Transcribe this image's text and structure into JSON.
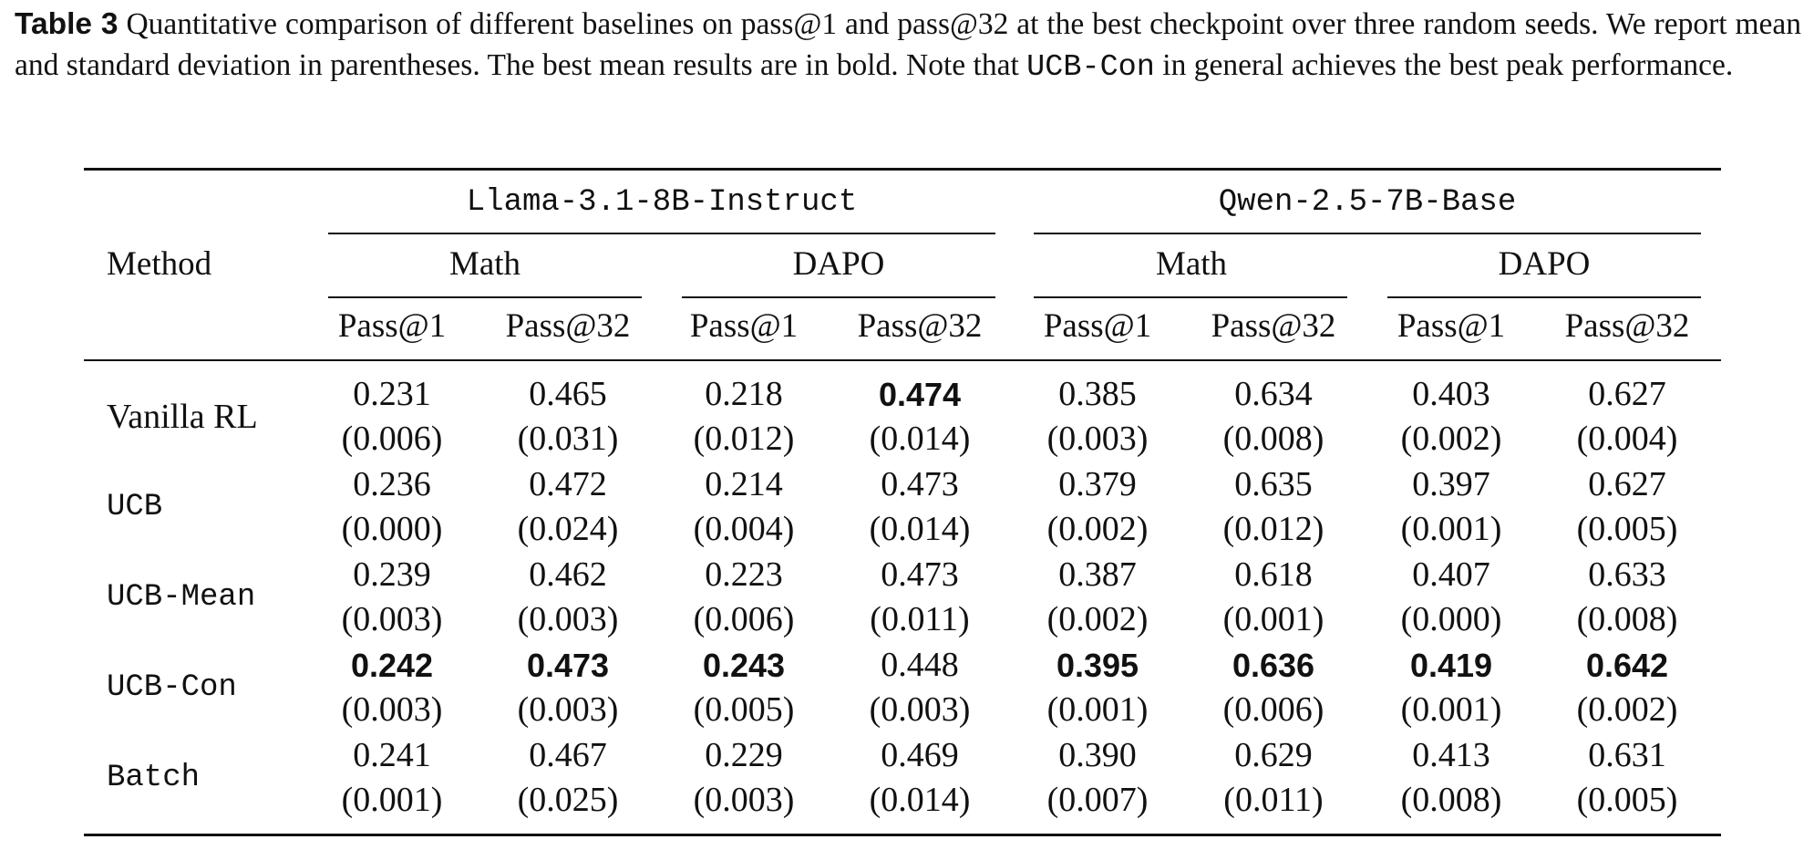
{
  "caption": {
    "label": "Table 3",
    "text_before": "Quantitative comparison of different baselines on pass@1 and pass@32 at the best checkpoint over three random seeds. We report mean and standard deviation in parentheses. The best mean results are in bold. Note that ",
    "code": "UCB-Con",
    "text_after": " in general achieves the best peak performance."
  },
  "table": {
    "method_header": "Method",
    "models": [
      "Llama-3.1-8B-Instruct",
      "Qwen-2.5-7B-Base"
    ],
    "datasets": [
      "Math",
      "DAPO",
      "Math",
      "DAPO"
    ],
    "metrics": [
      "Pass@1",
      "Pass@32",
      "Pass@1",
      "Pass@32",
      "Pass@1",
      "Pass@32",
      "Pass@1",
      "Pass@32"
    ],
    "rows": [
      {
        "method": "Vanilla RL",
        "code_style": false,
        "means": [
          "0.231",
          "0.465",
          "0.218",
          "0.474",
          "0.385",
          "0.634",
          "0.403",
          "0.627"
        ],
        "stds": [
          "(0.006)",
          "(0.031)",
          "(0.012)",
          "(0.014)",
          "(0.003)",
          "(0.008)",
          "(0.002)",
          "(0.004)"
        ],
        "best": [
          false,
          false,
          false,
          true,
          false,
          false,
          false,
          false
        ]
      },
      {
        "method": "UCB",
        "code_style": true,
        "means": [
          "0.236",
          "0.472",
          "0.214",
          "0.473",
          "0.379",
          "0.635",
          "0.397",
          "0.627"
        ],
        "stds": [
          "(0.000)",
          "(0.024)",
          "(0.004)",
          "(0.014)",
          "(0.002)",
          "(0.012)",
          "(0.001)",
          "(0.005)"
        ],
        "best": [
          false,
          false,
          false,
          false,
          false,
          false,
          false,
          false
        ]
      },
      {
        "method": "UCB-Mean",
        "code_style": true,
        "means": [
          "0.239",
          "0.462",
          "0.223",
          "0.473",
          "0.387",
          "0.618",
          "0.407",
          "0.633"
        ],
        "stds": [
          "(0.003)",
          "(0.003)",
          "(0.006)",
          "(0.011)",
          "(0.002)",
          "(0.001)",
          "(0.000)",
          "(0.008)"
        ],
        "best": [
          false,
          false,
          false,
          false,
          false,
          false,
          false,
          false
        ]
      },
      {
        "method": "UCB-Con",
        "code_style": true,
        "means": [
          "0.242",
          "0.473",
          "0.243",
          "0.448",
          "0.395",
          "0.636",
          "0.419",
          "0.642"
        ],
        "stds": [
          "(0.003)",
          "(0.003)",
          "(0.005)",
          "(0.003)",
          "(0.001)",
          "(0.006)",
          "(0.001)",
          "(0.002)"
        ],
        "best": [
          true,
          true,
          true,
          false,
          true,
          true,
          true,
          true
        ]
      },
      {
        "method": "Batch",
        "code_style": true,
        "means": [
          "0.241",
          "0.467",
          "0.229",
          "0.469",
          "0.390",
          "0.629",
          "0.413",
          "0.631"
        ],
        "stds": [
          "(0.001)",
          "(0.025)",
          "(0.003)",
          "(0.014)",
          "(0.007)",
          "(0.011)",
          "(0.008)",
          "(0.005)"
        ],
        "best": [
          false,
          false,
          false,
          false,
          false,
          false,
          false,
          false
        ]
      }
    ]
  }
}
